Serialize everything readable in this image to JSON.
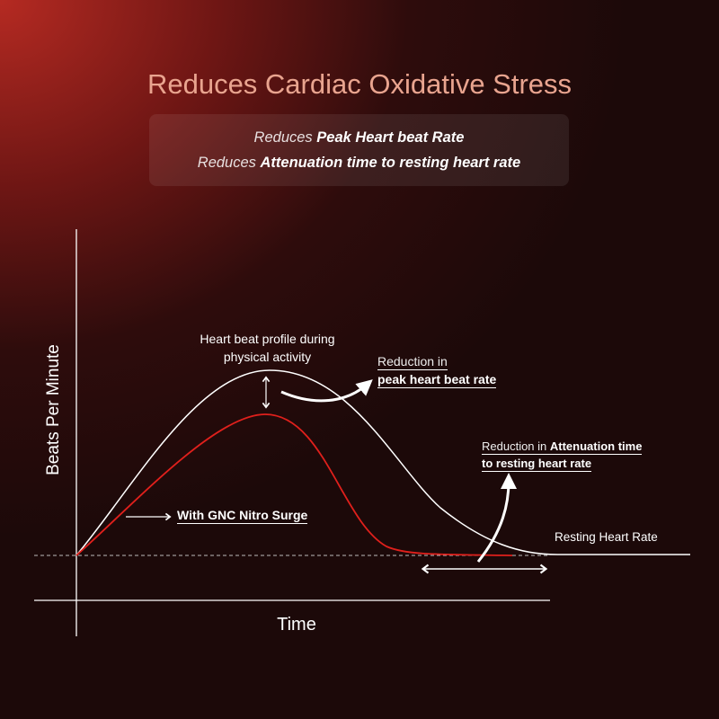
{
  "title": "Reduces Cardiac Oxidative Stress",
  "summary": {
    "line1": {
      "prefix": "Reduces ",
      "bold": "Peak Heart beat Rate"
    },
    "line2": {
      "prefix": "Reduces ",
      "bold": "Attenuation time to resting heart rate"
    }
  },
  "axes": {
    "y_label": "Beats Per Minute",
    "x_label": "Time"
  },
  "annotations": {
    "profile": {
      "line1": "Heart beat profile during",
      "line2": "physical activity"
    },
    "peak_reduction": {
      "line1": "Reduction  in",
      "line2": "peak heart beat rate"
    },
    "attenuation_reduction": {
      "prefix": "Reduction in ",
      "bold": "Attenuation time",
      "line2": "to resting heart rate"
    },
    "product": "With GNC Nitro Surge",
    "resting": "Resting Heart Rate"
  },
  "colors": {
    "title": "#e9a48f",
    "baseline_curve": "#ffffff",
    "product_curve": "#e0201c"
  }
}
